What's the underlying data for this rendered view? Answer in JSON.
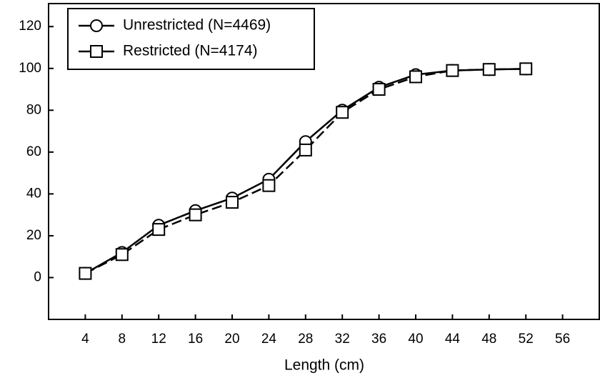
{
  "chart_data": {
    "type": "line",
    "x_label": "Length (cm)",
    "x": [
      4,
      8,
      12,
      16,
      20,
      24,
      28,
      32,
      36,
      40,
      44,
      48,
      52
    ],
    "series": [
      {
        "name": "Unrestricted (N=4469)",
        "color": "#000000",
        "marker": "circle",
        "linestyle": "solid",
        "values": [
          2,
          12,
          25,
          32,
          38,
          47,
          65,
          80,
          91,
          97,
          99,
          99.5,
          99.8
        ]
      },
      {
        "name": "Restricted (N=4174)",
        "color": "#000000",
        "marker": "square",
        "linestyle": "dashed",
        "values": [
          2,
          11,
          23,
          30,
          36,
          44,
          61,
          79,
          90,
          96,
          99,
          99.5,
          99.8
        ]
      }
    ],
    "xlim": [
      0,
      60
    ],
    "ylim": [
      -20,
      131
    ],
    "xticks": [
      4,
      8,
      12,
      16,
      20,
      24,
      28,
      32,
      36,
      40,
      44,
      48,
      52,
      56
    ],
    "yticks": [
      0,
      20,
      40,
      60,
      80,
      100,
      120
    ],
    "grid": false,
    "legend": "upper left"
  }
}
